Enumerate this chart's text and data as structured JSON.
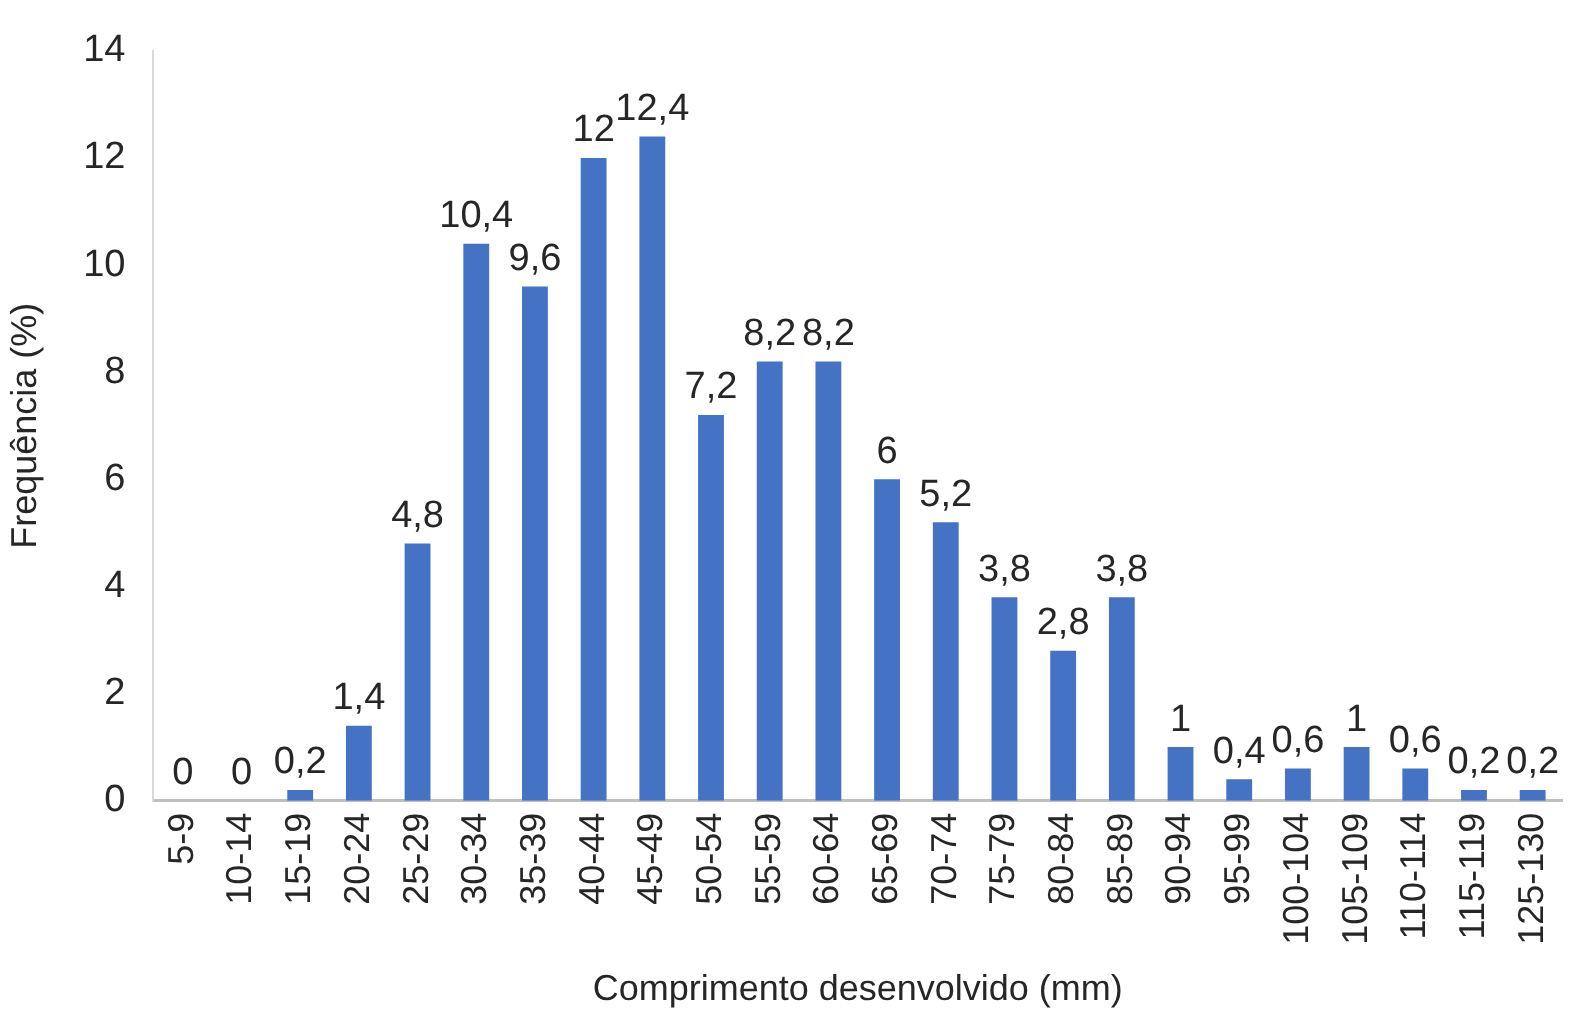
{
  "chart_data": {
    "type": "bar",
    "xlabel": "Comprimento desenvolvido (mm)",
    "ylabel": "Frequência (%)",
    "categories": [
      "5-9",
      "10-14",
      "15-19",
      "20-24",
      "25-29",
      "30-34",
      "35-39",
      "40-44",
      "45-49",
      "50-54",
      "55-59",
      "60-64",
      "65-69",
      "70-74",
      "75-79",
      "80-84",
      "85-89",
      "90-94",
      "95-99",
      "100-104",
      "105-109",
      "110-114",
      "115-119",
      "125-130"
    ],
    "values": [
      0,
      0,
      0.2,
      1.4,
      4.8,
      10.4,
      9.6,
      12,
      12.4,
      7.2,
      8.2,
      8.2,
      6,
      5.2,
      3.8,
      2.8,
      3.8,
      1,
      0.4,
      0.6,
      1,
      0.6,
      0.2,
      0.2
    ],
    "value_labels": [
      "0",
      "0",
      "0,2",
      "1,4",
      "4,8",
      "10,4",
      "9,6",
      "12",
      "12,4",
      "7,2",
      "8,2",
      "8,2",
      "6",
      "5,2",
      "3,8",
      "2,8",
      "3,8",
      "1",
      "0,4",
      "0,6",
      "1",
      "0,6",
      "0,2",
      "0,2"
    ],
    "color": "#4472c4",
    "ylim": [
      0,
      14
    ],
    "yticks": [
      0,
      2,
      4,
      6,
      8,
      10,
      12,
      14
    ]
  }
}
